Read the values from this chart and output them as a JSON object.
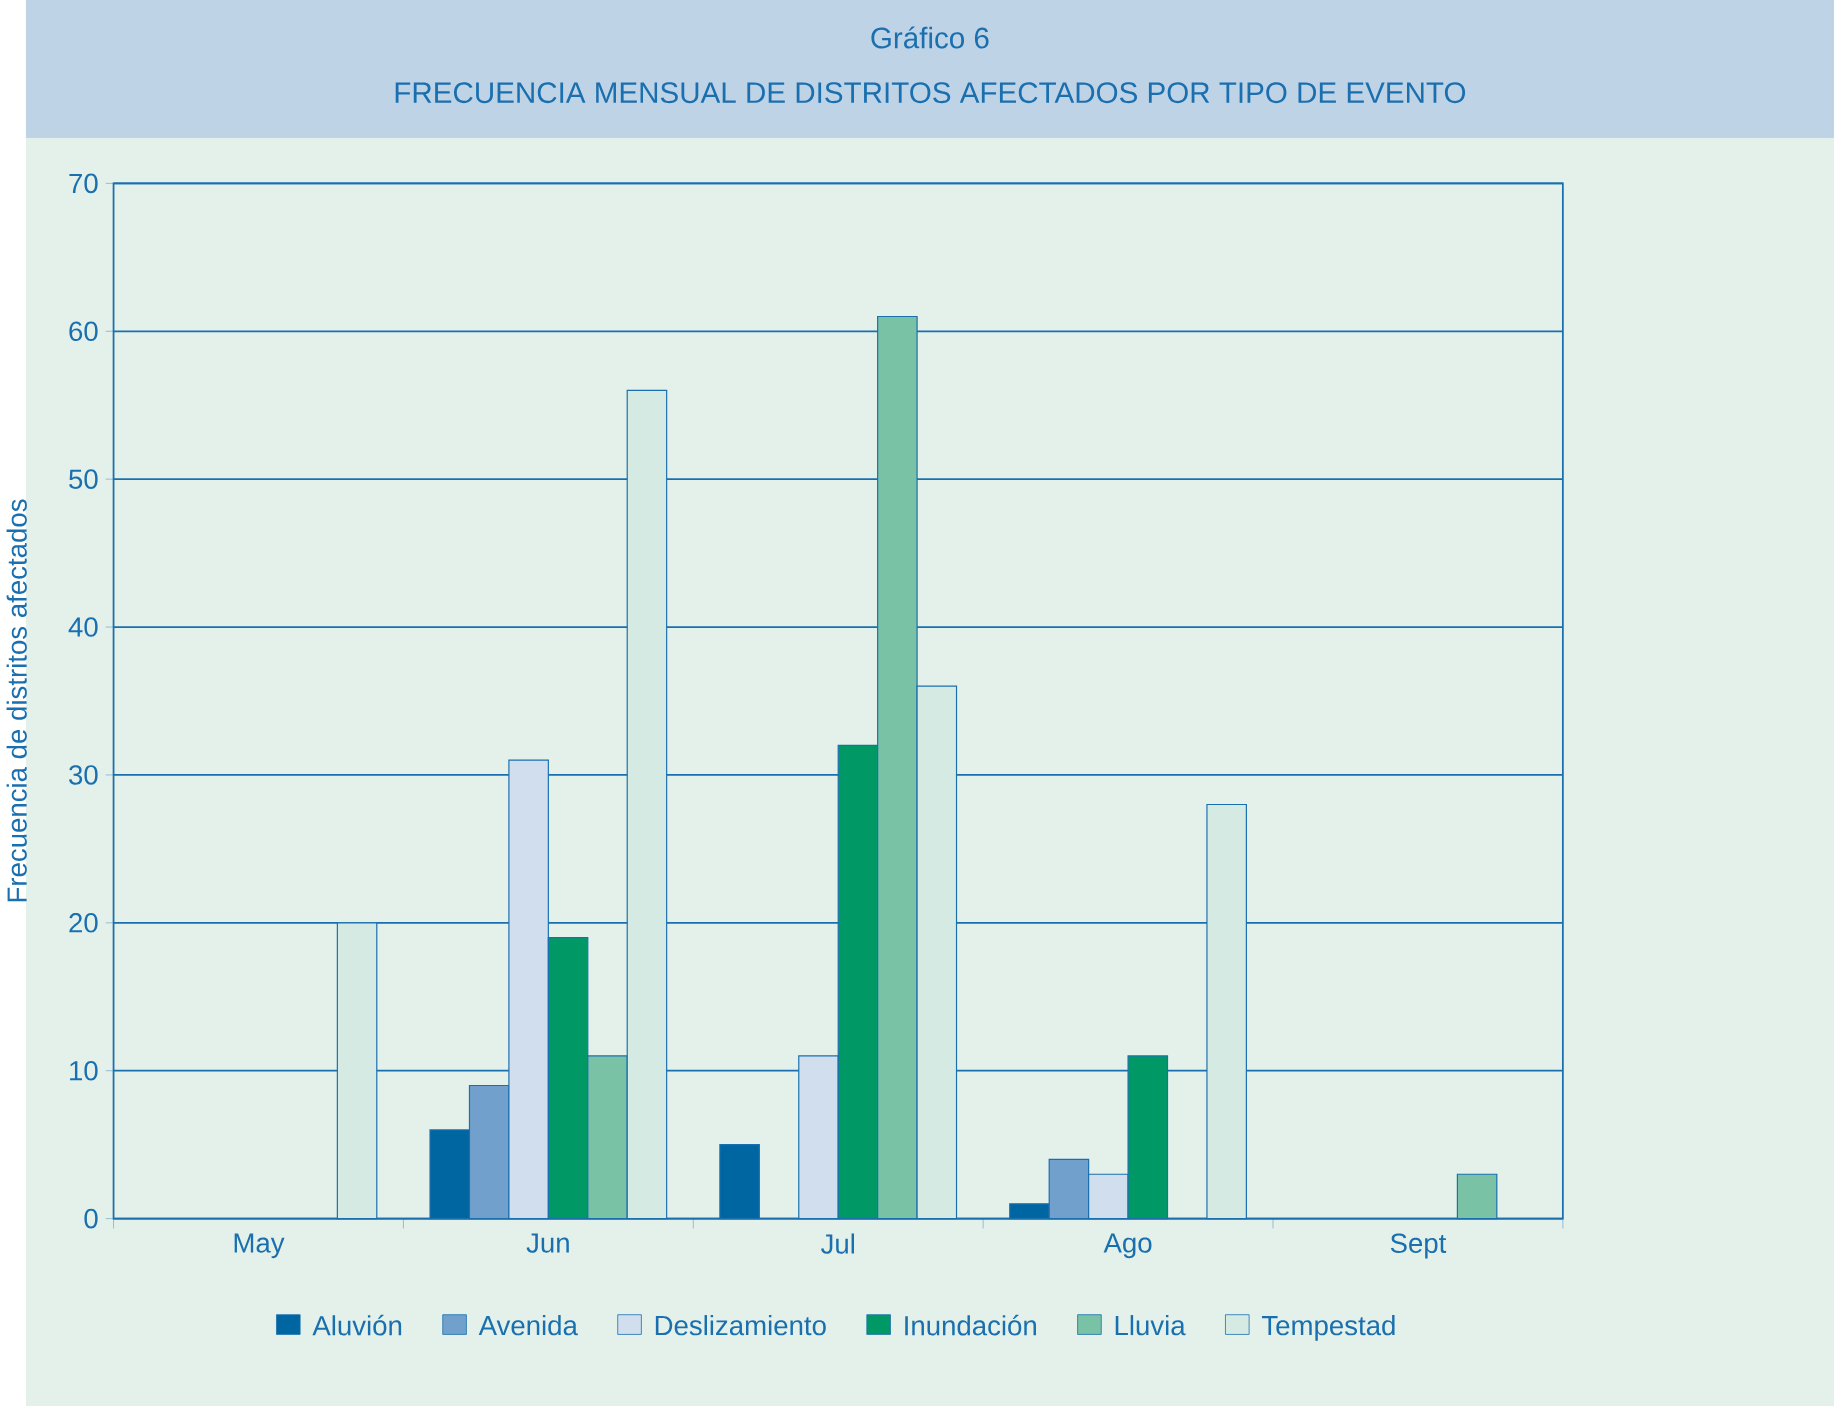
{
  "chart_data": {
    "type": "bar",
    "title": "Gráfico 6",
    "subtitle": "FRECUENCIA MENSUAL DE DISTRITOS AFECTADOS POR TIPO DE EVENTO",
    "ylabel": "Frecuencia de distritos afectados",
    "categories": [
      "May",
      "Jun",
      "Jul",
      "Ago",
      "Sept"
    ],
    "series": [
      {
        "name": "Aluvión",
        "color": "#0066a1",
        "values": [
          null,
          6,
          5,
          1,
          null
        ]
      },
      {
        "name": "Avenida",
        "color": "#72a0cc",
        "values": [
          null,
          9,
          null,
          4,
          null
        ]
      },
      {
        "name": "Deslizamiento",
        "color": "#d1deee",
        "values": [
          null,
          31,
          11,
          3,
          null
        ]
      },
      {
        "name": "Inundación",
        "color": "#009966",
        "values": [
          null,
          19,
          32,
          11,
          null
        ]
      },
      {
        "name": "Lluvia",
        "color": "#79c2a6",
        "values": [
          null,
          11,
          61,
          null,
          3
        ]
      },
      {
        "name": "Tempestad",
        "color": "#d5eae2",
        "values": [
          20,
          56,
          36,
          28,
          null
        ]
      }
    ],
    "ylim": [
      0,
      70
    ],
    "yticks": [
      0,
      10,
      20,
      30,
      40,
      50,
      60,
      70
    ],
    "grid": "y",
    "legend": "bottom"
  }
}
